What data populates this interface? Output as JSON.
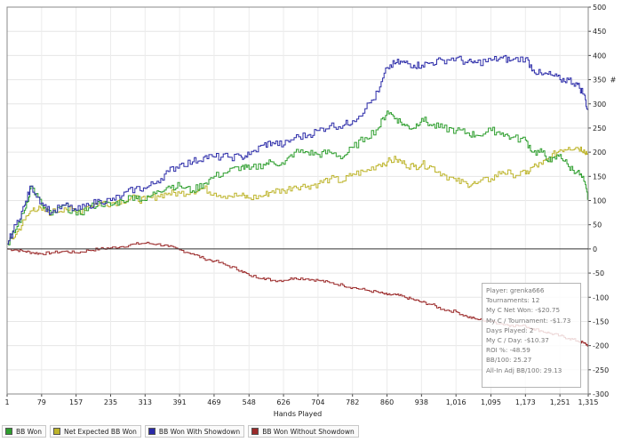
{
  "chart_data": {
    "type": "line",
    "title": "",
    "xlabel": "Hands Played",
    "ylabel": "#",
    "xlim": [
      1,
      1315
    ],
    "ylim": [
      -300,
      500
    ],
    "x_ticks": [
      "1",
      "79",
      "157",
      "235",
      "313",
      "391",
      "469",
      "548",
      "626",
      "704",
      "782",
      "860",
      "938",
      "1,016",
      "1,095",
      "1,173",
      "1,251",
      "1,315"
    ],
    "y_ticks": [
      "500",
      "450",
      "400",
      "350",
      "300",
      "250",
      "200",
      "150",
      "100",
      "50",
      "0",
      "-50",
      "-100",
      "-150",
      "-200",
      "-250",
      "-300"
    ],
    "series": [
      {
        "name": "BB Won",
        "color": "#2e9e2e",
        "points": [
          [
            1,
            10
          ],
          [
            20,
            40
          ],
          [
            40,
            80
          ],
          [
            55,
            130
          ],
          [
            79,
            90
          ],
          [
            100,
            70
          ],
          [
            130,
            90
          ],
          [
            157,
            70
          ],
          [
            185,
            85
          ],
          [
            210,
            95
          ],
          [
            235,
            90
          ],
          [
            260,
            100
          ],
          [
            290,
            110
          ],
          [
            313,
            100
          ],
          [
            340,
            120
          ],
          [
            365,
            130
          ],
          [
            391,
            130
          ],
          [
            420,
            120
          ],
          [
            445,
            135
          ],
          [
            469,
            150
          ],
          [
            500,
            160
          ],
          [
            530,
            170
          ],
          [
            548,
            165
          ],
          [
            580,
            175
          ],
          [
            600,
            180
          ],
          [
            626,
            175
          ],
          [
            650,
            200
          ],
          [
            680,
            200
          ],
          [
            704,
            195
          ],
          [
            730,
            200
          ],
          [
            760,
            190
          ],
          [
            782,
            210
          ],
          [
            810,
            230
          ],
          [
            840,
            250
          ],
          [
            860,
            285
          ],
          [
            880,
            270
          ],
          [
            900,
            255
          ],
          [
            920,
            250
          ],
          [
            938,
            270
          ],
          [
            960,
            255
          ],
          [
            985,
            250
          ],
          [
            1016,
            245
          ],
          [
            1040,
            240
          ],
          [
            1060,
            235
          ],
          [
            1095,
            245
          ],
          [
            1120,
            240
          ],
          [
            1140,
            230
          ],
          [
            1173,
            225
          ],
          [
            1190,
            200
          ],
          [
            1210,
            200
          ],
          [
            1230,
            180
          ],
          [
            1251,
            195
          ],
          [
            1270,
            170
          ],
          [
            1290,
            160
          ],
          [
            1305,
            140
          ],
          [
            1315,
            100
          ]
        ]
      },
      {
        "name": "Net Expected BB Won",
        "color": "#bdb42a",
        "points": [
          [
            1,
            10
          ],
          [
            20,
            30
          ],
          [
            40,
            60
          ],
          [
            60,
            85
          ],
          [
            79,
            80
          ],
          [
            100,
            75
          ],
          [
            130,
            85
          ],
          [
            157,
            75
          ],
          [
            185,
            90
          ],
          [
            210,
            95
          ],
          [
            235,
            95
          ],
          [
            260,
            100
          ],
          [
            290,
            105
          ],
          [
            313,
            100
          ],
          [
            340,
            110
          ],
          [
            365,
            115
          ],
          [
            391,
            115
          ],
          [
            420,
            120
          ],
          [
            445,
            125
          ],
          [
            469,
            115
          ],
          [
            500,
            110
          ],
          [
            530,
            110
          ],
          [
            548,
            105
          ],
          [
            580,
            110
          ],
          [
            600,
            120
          ],
          [
            626,
            120
          ],
          [
            650,
            130
          ],
          [
            680,
            130
          ],
          [
            704,
            135
          ],
          [
            730,
            145
          ],
          [
            760,
            140
          ],
          [
            782,
            155
          ],
          [
            810,
            160
          ],
          [
            840,
            175
          ],
          [
            860,
            180
          ],
          [
            880,
            185
          ],
          [
            900,
            175
          ],
          [
            920,
            170
          ],
          [
            938,
            175
          ],
          [
            960,
            170
          ],
          [
            985,
            155
          ],
          [
            1016,
            140
          ],
          [
            1040,
            135
          ],
          [
            1060,
            135
          ],
          [
            1095,
            145
          ],
          [
            1120,
            160
          ],
          [
            1140,
            155
          ],
          [
            1173,
            155
          ],
          [
            1190,
            170
          ],
          [
            1210,
            175
          ],
          [
            1230,
            190
          ],
          [
            1251,
            205
          ],
          [
            1270,
            210
          ],
          [
            1290,
            210
          ],
          [
            1305,
            205
          ],
          [
            1315,
            195
          ]
        ]
      },
      {
        "name": "BB Won With Showdown",
        "color": "#2a2aa8",
        "points": [
          [
            1,
            10
          ],
          [
            20,
            50
          ],
          [
            40,
            90
          ],
          [
            55,
            130
          ],
          [
            79,
            95
          ],
          [
            100,
            75
          ],
          [
            130,
            90
          ],
          [
            157,
            80
          ],
          [
            185,
            90
          ],
          [
            210,
            100
          ],
          [
            235,
            100
          ],
          [
            260,
            110
          ],
          [
            290,
            125
          ],
          [
            313,
            125
          ],
          [
            340,
            140
          ],
          [
            365,
            160
          ],
          [
            391,
            175
          ],
          [
            420,
            180
          ],
          [
            445,
            190
          ],
          [
            469,
            190
          ],
          [
            500,
            190
          ],
          [
            530,
            190
          ],
          [
            548,
            195
          ],
          [
            580,
            215
          ],
          [
            600,
            220
          ],
          [
            626,
            215
          ],
          [
            650,
            230
          ],
          [
            680,
            235
          ],
          [
            704,
            245
          ],
          [
            730,
            255
          ],
          [
            760,
            255
          ],
          [
            782,
            265
          ],
          [
            810,
            290
          ],
          [
            840,
            325
          ],
          [
            860,
            375
          ],
          [
            880,
            385
          ],
          [
            900,
            385
          ],
          [
            920,
            380
          ],
          [
            938,
            380
          ],
          [
            960,
            385
          ],
          [
            985,
            390
          ],
          [
            1016,
            395
          ],
          [
            1040,
            385
          ],
          [
            1060,
            385
          ],
          [
            1095,
            390
          ],
          [
            1120,
            395
          ],
          [
            1140,
            390
          ],
          [
            1173,
            395
          ],
          [
            1190,
            370
          ],
          [
            1210,
            360
          ],
          [
            1230,
            360
          ],
          [
            1251,
            350
          ],
          [
            1270,
            350
          ],
          [
            1290,
            340
          ],
          [
            1305,
            320
          ],
          [
            1315,
            280
          ]
        ]
      },
      {
        "name": "BB Won Without Showdown",
        "color": "#9b2a2a",
        "points": [
          [
            1,
            0
          ],
          [
            20,
            -2
          ],
          [
            40,
            -5
          ],
          [
            60,
            -8
          ],
          [
            79,
            -10
          ],
          [
            100,
            -8
          ],
          [
            130,
            -5
          ],
          [
            157,
            -8
          ],
          [
            185,
            -3
          ],
          [
            210,
            0
          ],
          [
            235,
            2
          ],
          [
            260,
            5
          ],
          [
            290,
            10
          ],
          [
            313,
            12
          ],
          [
            340,
            10
          ],
          [
            365,
            5
          ],
          [
            391,
            -2
          ],
          [
            420,
            -10
          ],
          [
            445,
            -20
          ],
          [
            469,
            -25
          ],
          [
            500,
            -35
          ],
          [
            530,
            -45
          ],
          [
            548,
            -55
          ],
          [
            580,
            -60
          ],
          [
            600,
            -65
          ],
          [
            626,
            -65
          ],
          [
            650,
            -60
          ],
          [
            680,
            -62
          ],
          [
            704,
            -65
          ],
          [
            730,
            -70
          ],
          [
            760,
            -75
          ],
          [
            782,
            -80
          ],
          [
            810,
            -85
          ],
          [
            840,
            -90
          ],
          [
            860,
            -95
          ],
          [
            880,
            -95
          ],
          [
            900,
            -100
          ],
          [
            920,
            -105
          ],
          [
            938,
            -110
          ],
          [
            960,
            -115
          ],
          [
            985,
            -125
          ],
          [
            1016,
            -130
          ],
          [
            1040,
            -140
          ],
          [
            1060,
            -145
          ],
          [
            1095,
            -150
          ],
          [
            1120,
            -155
          ],
          [
            1140,
            -158
          ],
          [
            1173,
            -160
          ],
          [
            1190,
            -165
          ],
          [
            1210,
            -170
          ],
          [
            1230,
            -175
          ],
          [
            1251,
            -180
          ],
          [
            1270,
            -185
          ],
          [
            1290,
            -190
          ],
          [
            1305,
            -195
          ],
          [
            1315,
            -200
          ]
        ]
      }
    ]
  },
  "stats": {
    "player": "Player: grenka666",
    "tournaments": "Tournaments: 12",
    "net_won": "My C Net Won: -$20.75",
    "per_tournament": "My C / Tournament: -$1.73",
    "days_played": "Days Played: 2",
    "per_day": "My C / Day: -$10.37",
    "roi": "ROI %: -48.59",
    "bb100": "BB/100: 25.27",
    "allin_bb100": "All-In Adj BB/100: 29.13"
  },
  "legend": [
    {
      "label": "BB Won",
      "color": "#2e9e2e"
    },
    {
      "label": "Net Expected BB Won",
      "color": "#bdb42a"
    },
    {
      "label": "BB Won With Showdown",
      "color": "#2a2aa8"
    },
    {
      "label": "BB Won Without Showdown",
      "color": "#9b2a2a"
    }
  ]
}
